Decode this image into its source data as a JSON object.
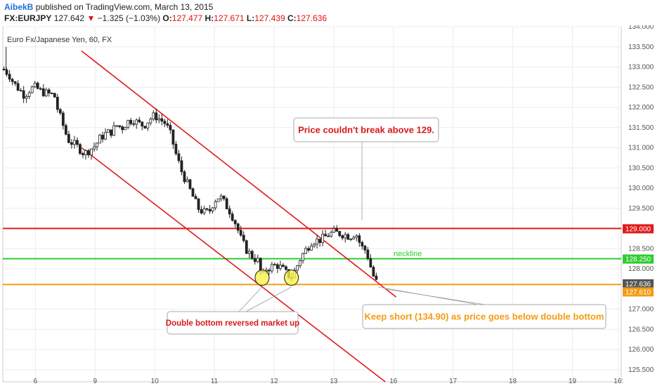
{
  "header": {
    "author": "AibekB",
    "published": "published on TradingView.com, March 13, 2015",
    "symbol": "FX:EURJPY",
    "last": "127.642",
    "change": "−1.325 (−1.03%)",
    "o_label": "O:",
    "o_value": "127.477",
    "h_label": "H:",
    "h_value": "127.671",
    "l_label": "L:",
    "l_value": "127.439",
    "c_label": "C:",
    "c_value": "127.636"
  },
  "chart_data": {
    "type": "candlestick",
    "title": "Euro Fx/Japanese Yen, 60, FX",
    "ylim": [
      125.2,
      134.0
    ],
    "xlim": [
      0,
      11.4
    ],
    "y_ticks": [
      {
        "value": 125.5,
        "label": "125.500"
      },
      {
        "value": 126.0,
        "label": "126.000"
      },
      {
        "value": 126.5,
        "label": "126.500"
      },
      {
        "value": 127.0,
        "label": "127.000"
      },
      {
        "value": 128.0,
        "label": "128.000"
      },
      {
        "value": 128.5,
        "label": "128.500"
      },
      {
        "value": 129.5,
        "label": "129.500"
      },
      {
        "value": 130.0,
        "label": "130.000"
      },
      {
        "value": 130.5,
        "label": "130.500"
      },
      {
        "value": 131.0,
        "label": "131.000"
      },
      {
        "value": 131.5,
        "label": "131.500"
      },
      {
        "value": 132.0,
        "label": "132.000"
      },
      {
        "value": 132.5,
        "label": "132.500"
      },
      {
        "value": 133.0,
        "label": "133.000"
      },
      {
        "value": 133.5,
        "label": "133.500"
      },
      {
        "value": 134.0,
        "label": "134.000"
      }
    ],
    "x_ticks": [
      {
        "value": 0.6,
        "label": "6"
      },
      {
        "value": 1.7,
        "label": "9"
      },
      {
        "value": 2.8,
        "label": "10"
      },
      {
        "value": 3.9,
        "label": "11"
      },
      {
        "value": 5.0,
        "label": "12"
      },
      {
        "value": 6.1,
        "label": "13"
      },
      {
        "value": 7.2,
        "label": "16"
      },
      {
        "value": 8.3,
        "label": "17"
      },
      {
        "value": 9.4,
        "label": "18"
      },
      {
        "value": 10.5,
        "label": "19"
      },
      {
        "value": 11.35,
        "label": "16:"
      }
    ],
    "price_path": [
      [
        0.0,
        132.95
      ],
      [
        0.1,
        132.85
      ],
      [
        0.2,
        132.6
      ],
      [
        0.3,
        132.45
      ],
      [
        0.4,
        132.3
      ],
      [
        0.5,
        132.45
      ],
      [
        0.6,
        132.5
      ],
      [
        0.7,
        132.4
      ],
      [
        0.8,
        132.35
      ],
      [
        0.95,
        132.3
      ],
      [
        1.0,
        132.0
      ],
      [
        1.1,
        131.6
      ],
      [
        1.2,
        131.2
      ],
      [
        1.3,
        131.1
      ],
      [
        1.4,
        131.0
      ],
      [
        1.5,
        130.85
      ],
      [
        1.6,
        130.95
      ],
      [
        1.7,
        131.05
      ],
      [
        1.8,
        131.25
      ],
      [
        1.9,
        131.35
      ],
      [
        2.0,
        131.4
      ],
      [
        2.1,
        131.55
      ],
      [
        2.2,
        131.5
      ],
      [
        2.3,
        131.65
      ],
      [
        2.4,
        131.7
      ],
      [
        2.5,
        131.6
      ],
      [
        2.6,
        131.55
      ],
      [
        2.7,
        131.7
      ],
      [
        2.8,
        131.8
      ],
      [
        2.9,
        131.7
      ],
      [
        3.0,
        131.6
      ],
      [
        3.1,
        131.3
      ],
      [
        3.2,
        130.8
      ],
      [
        3.3,
        130.4
      ],
      [
        3.4,
        130.1
      ],
      [
        3.5,
        129.8
      ],
      [
        3.6,
        129.5
      ],
      [
        3.7,
        129.4
      ],
      [
        3.8,
        129.4
      ],
      [
        3.9,
        129.7
      ],
      [
        4.0,
        129.8
      ],
      [
        4.1,
        129.6
      ],
      [
        4.2,
        129.4
      ],
      [
        4.3,
        129.1
      ],
      [
        4.4,
        128.7
      ],
      [
        4.5,
        128.45
      ],
      [
        4.6,
        128.3
      ],
      [
        4.7,
        128.2
      ],
      [
        4.78,
        127.75
      ],
      [
        4.85,
        128.0
      ],
      [
        4.95,
        128.05
      ],
      [
        5.05,
        128.1
      ],
      [
        5.15,
        128.0
      ],
      [
        5.25,
        127.85
      ],
      [
        5.32,
        127.8
      ],
      [
        5.4,
        128.0
      ],
      [
        5.5,
        128.3
      ],
      [
        5.6,
        128.5
      ],
      [
        5.7,
        128.7
      ],
      [
        5.8,
        128.7
      ],
      [
        5.9,
        128.75
      ],
      [
        6.0,
        128.85
      ],
      [
        6.1,
        128.9
      ],
      [
        6.2,
        128.88
      ],
      [
        6.3,
        128.85
      ],
      [
        6.4,
        128.8
      ],
      [
        6.5,
        128.9
      ],
      [
        6.55,
        128.75
      ],
      [
        6.6,
        128.55
      ],
      [
        6.7,
        128.45
      ],
      [
        6.8,
        127.95
      ],
      [
        6.85,
        127.75
      ],
      [
        6.9,
        127.64
      ]
    ],
    "horizontal_levels": [
      {
        "value": 129.0,
        "label": "129.000",
        "color": "#e01b1b"
      },
      {
        "value": 128.25,
        "label": "128.250",
        "color": "#2ecc2e"
      },
      {
        "value": 127.636,
        "label": "127.636",
        "color": "#555555"
      },
      {
        "value": 127.61,
        "label": "127.610",
        "color": "#f39c12"
      }
    ],
    "neckline_label": "neckline",
    "channel_lines": [
      {
        "from": [
          1.45,
          133.4
        ],
        "to": [
          7.25,
          127.3
        ],
        "color": "#e01b1b"
      },
      {
        "from": [
          1.45,
          131.0
        ],
        "to": [
          7.05,
          125.2
        ],
        "color": "#e01b1b"
      }
    ],
    "double_bottom_markers": [
      {
        "x": 4.78,
        "y": 127.78
      },
      {
        "x": 5.32,
        "y": 127.78
      }
    ],
    "annotations": [
      {
        "text": "Price couldn't  break above 129.",
        "color": "#d61a1a"
      },
      {
        "text": "Double bottom reversed market up",
        "color": "#d61a1a"
      },
      {
        "text": "Keep short (134.90) as price goes below double bottom",
        "color": "#f39c12"
      }
    ],
    "colors": {
      "up": "#ffffff",
      "down": "#222222",
      "grid": "#ececec"
    }
  }
}
